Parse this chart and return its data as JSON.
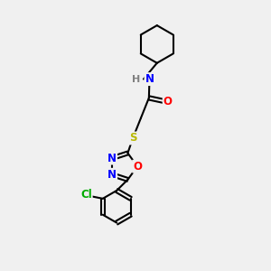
{
  "bg_color": "#f0f0f0",
  "bond_color": "#000000",
  "bond_width": 1.5,
  "atom_colors": {
    "N": "#0000ff",
    "O": "#ff0000",
    "S": "#b8b800",
    "Cl": "#00aa00",
    "H": "#808080",
    "C": "#000000"
  },
  "font_size": 8.5,
  "fig_width": 3.0,
  "fig_height": 3.0,
  "dpi": 100
}
